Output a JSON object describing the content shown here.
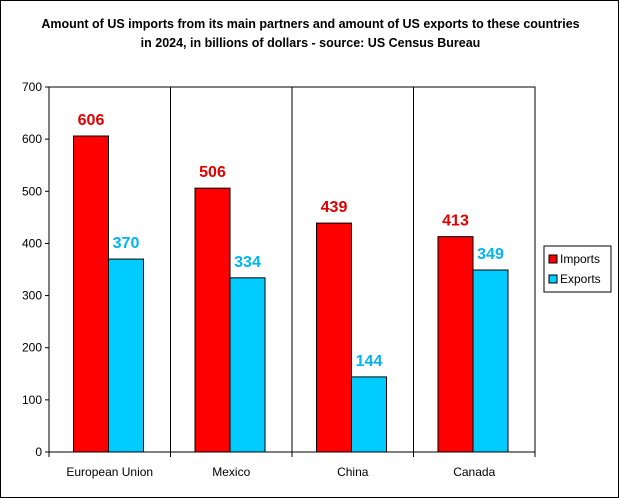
{
  "chart_data": {
    "type": "bar",
    "title": "Amount of US imports from its main partners and amount of US exports to these countries in 2024, in billions of dollars - source: US Census Bureau",
    "categories": [
      "European Union",
      "Mexico",
      "China",
      "Canada"
    ],
    "series": [
      {
        "name": "Imports",
        "color": "#ff0000",
        "label_color": "#e00000",
        "values": [
          606,
          506,
          439,
          413
        ]
      },
      {
        "name": "Exports",
        "color": "#00ccff",
        "label_color": "#00b4f0",
        "values": [
          370,
          334,
          144,
          349
        ]
      }
    ],
    "yticks": [
      "0",
      "100",
      "200",
      "300",
      "400",
      "500",
      "600",
      "700"
    ],
    "ylim": [
      0,
      700
    ],
    "xlabel": "",
    "ylabel": "",
    "grid": "vertical category separators",
    "legend": "right"
  }
}
